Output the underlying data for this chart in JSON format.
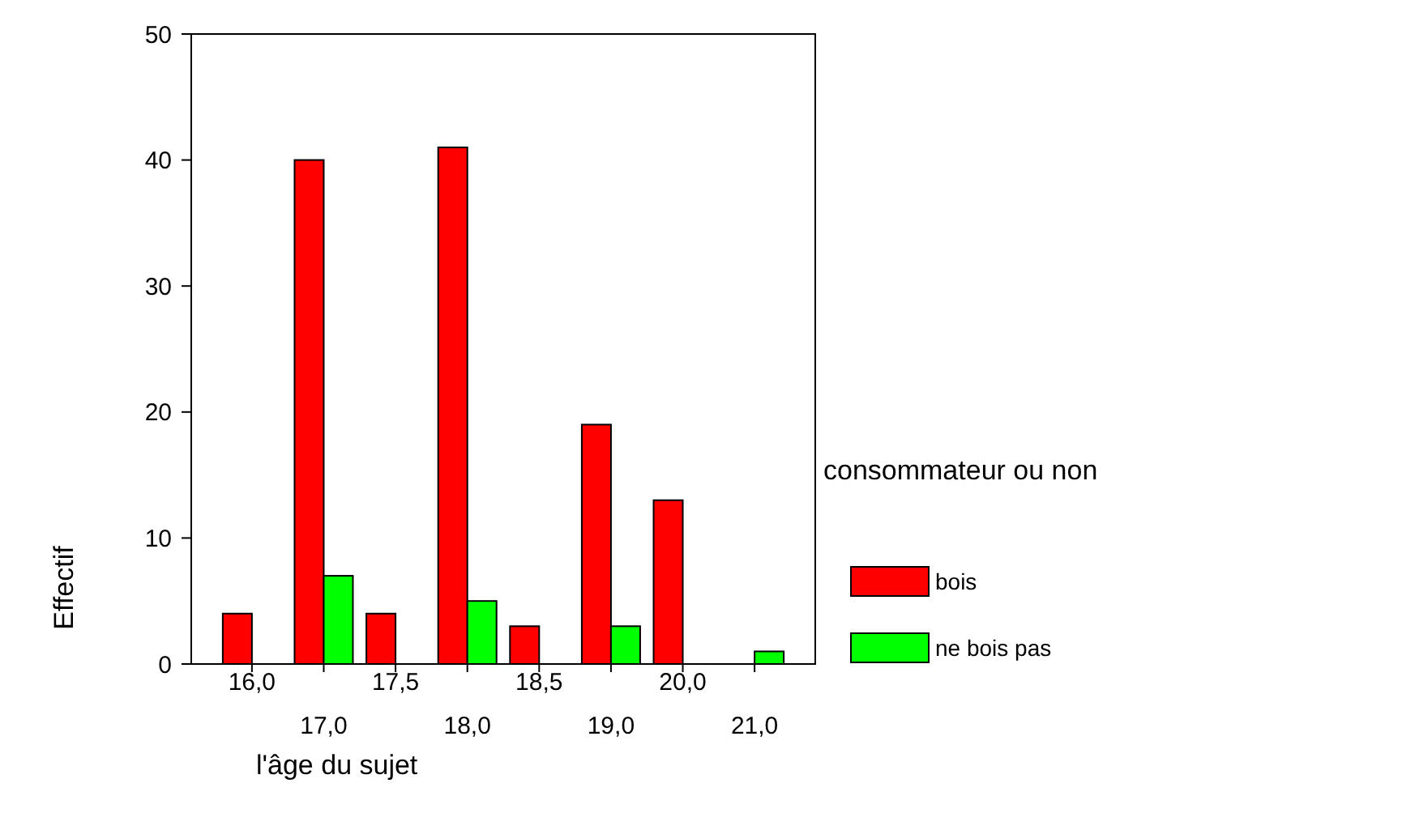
{
  "chart_data": {
    "type": "bar",
    "xlabel": "l'âge du sujet",
    "ylabel": "Effectif",
    "legend_title": "consommateur ou non",
    "categories": [
      "16,0",
      "17,0",
      "17,5",
      "18,0",
      "18,5",
      "19,0",
      "20,0",
      "21,0"
    ],
    "series": [
      {
        "name": "bois",
        "color": "#ff0000",
        "values": [
          4,
          40,
          4,
          41,
          3,
          19,
          13,
          0
        ]
      },
      {
        "name": "ne bois pas",
        "color": "#00ff00",
        "values": [
          0,
          7,
          0,
          5,
          0,
          3,
          0,
          1
        ]
      }
    ],
    "ylim": [
      0,
      50
    ],
    "yticks": [
      0,
      10,
      20,
      30,
      40,
      50
    ],
    "grid": false,
    "legend": "right"
  }
}
